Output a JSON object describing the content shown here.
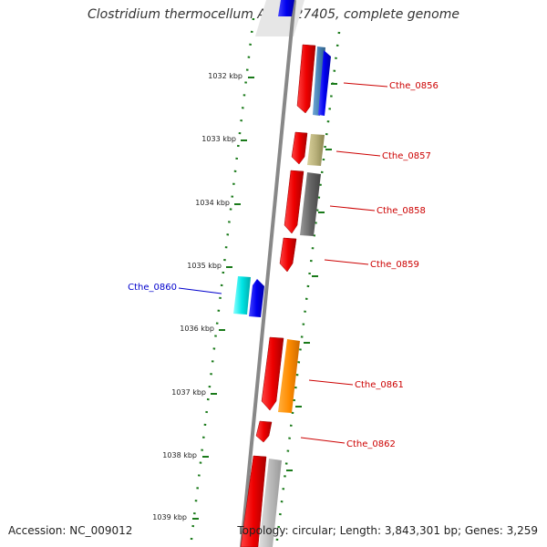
{
  "title": "Clostridium thermocellum ATCC 27405, complete genome",
  "footer": {
    "accession": "Accession: NC_009012",
    "topology": "Topology: circular; Length: 3,843,301 bp; Genes: 3,259"
  },
  "ticks": [
    {
      "label": "1032 kbp"
    },
    {
      "label": "1033 kbp"
    },
    {
      "label": "1034 kbp"
    },
    {
      "label": "1035 kbp"
    },
    {
      "label": "1036 kbp"
    },
    {
      "label": "1037 kbp"
    },
    {
      "label": "1038 kbp"
    },
    {
      "label": "1039 kbp"
    }
  ],
  "gene_labels": [
    {
      "name": "Cthe_0856",
      "color": "#cc0000"
    },
    {
      "name": "Cthe_0857",
      "color": "#cc0000"
    },
    {
      "name": "Cthe_0858",
      "color": "#cc0000"
    },
    {
      "name": "Cthe_0859",
      "color": "#cc0000"
    },
    {
      "name": "Cthe_0860",
      "color": "#0000cc"
    },
    {
      "name": "Cthe_0861",
      "color": "#cc0000"
    },
    {
      "name": "Cthe_0862",
      "color": "#cc0000"
    }
  ],
  "colors": {
    "backbone": "#888888",
    "dotted_ring": "#1a7a1a",
    "red_feature": "#ee0000",
    "blue_feature": "#0000ee",
    "cyan_feature": "#00e5e5",
    "tan_feature": "#b8b07a",
    "gray_feature": "#666666",
    "orange_feature": "#ff8c00",
    "light_gray_feature": "#bbbbbb",
    "steel_feature": "#4682b4"
  }
}
